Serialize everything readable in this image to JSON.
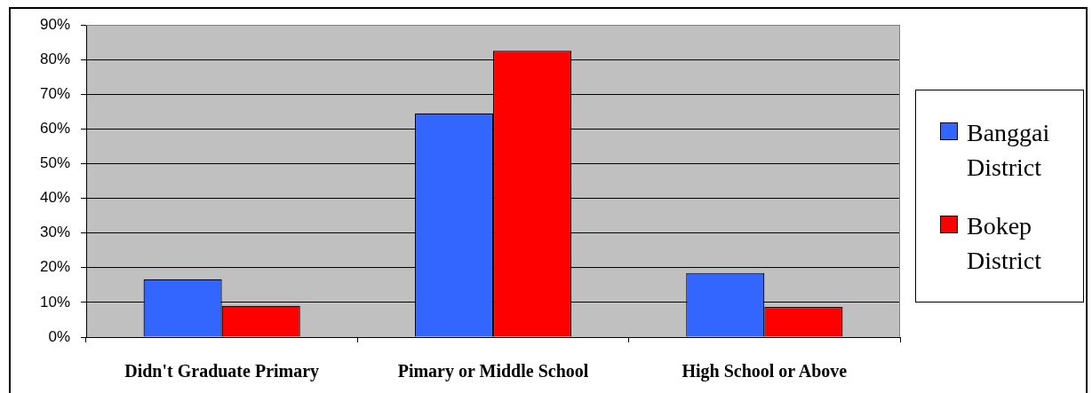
{
  "chart_data": {
    "type": "bar",
    "categories": [
      "Didn't Graduate Primary",
      "Pimary or Middle School",
      "High School or Above"
    ],
    "series": [
      {
        "name": "Banggai District",
        "color": "#3366ff",
        "values": [
          16.7,
          64.5,
          18.5
        ]
      },
      {
        "name": "Bokep District",
        "color": "#ff0000",
        "values": [
          9,
          82.5,
          8.7
        ]
      }
    ],
    "ylim": [
      0,
      90
    ],
    "yticks": [
      {
        "value": 0,
        "label": "0%"
      },
      {
        "value": 10,
        "label": "10%"
      },
      {
        "value": 20,
        "label": "20%"
      },
      {
        "value": 30,
        "label": "30%"
      },
      {
        "value": 40,
        "label": "40%"
      },
      {
        "value": 50,
        "label": "50%"
      },
      {
        "value": 60,
        "label": "60%"
      },
      {
        "value": 70,
        "label": "70%"
      },
      {
        "value": 80,
        "label": "80%"
      },
      {
        "value": 90,
        "label": "90%"
      }
    ],
    "grid": "y",
    "legend": "right"
  }
}
